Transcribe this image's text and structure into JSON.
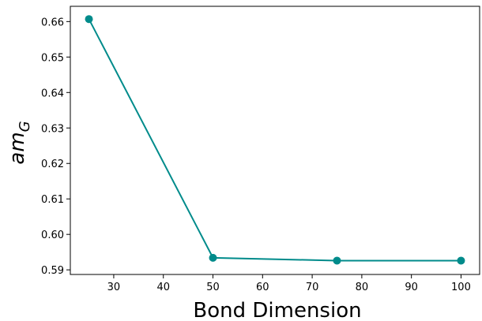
{
  "chart_data": {
    "type": "line",
    "title": "",
    "xlabel": "Bond Dimension",
    "ylabel": {
      "base": "am",
      "subscript": "G"
    },
    "x": [
      25,
      50,
      75,
      100
    ],
    "series": [
      {
        "values": [
          0.6607,
          0.5934,
          0.5926,
          0.5926
        ],
        "color": "#008b8b",
        "marker": "circle"
      }
    ],
    "xlim": [
      21.25,
      103.75
    ],
    "ylim": [
      0.5887,
      0.6643
    ],
    "xticks": [
      30,
      40,
      50,
      60,
      70,
      80,
      90,
      100
    ],
    "xtick_labels": [
      "30",
      "40",
      "50",
      "60",
      "70",
      "80",
      "90",
      "100"
    ],
    "yticks": [
      0.59,
      0.6,
      0.61,
      0.62,
      0.63,
      0.64,
      0.65,
      0.66
    ],
    "ytick_labels": [
      "0.59",
      "0.60",
      "0.61",
      "0.62",
      "0.63",
      "0.64",
      "0.65",
      "0.66"
    ],
    "grid": false,
    "legend": "none"
  }
}
